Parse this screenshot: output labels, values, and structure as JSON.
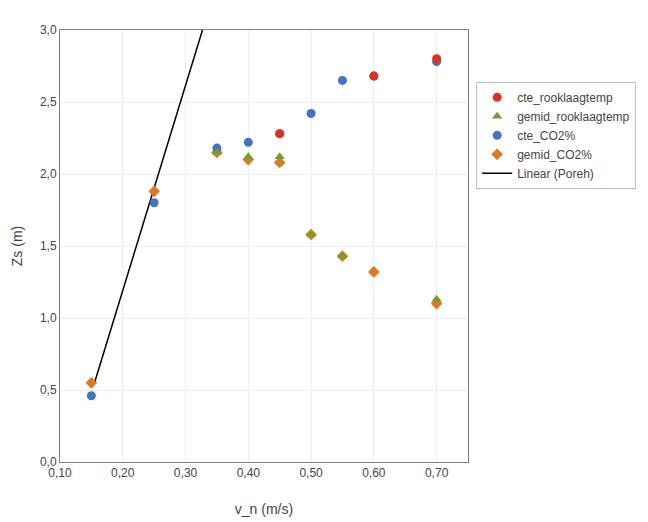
{
  "chart_data": {
    "type": "scatter",
    "xlabel": "v_n (m/s)",
    "ylabel": "Zs (m)",
    "xlim": [
      0.1,
      0.75
    ],
    "ylim": [
      0.0,
      3.0
    ],
    "xticks": [
      {
        "value": 0.1,
        "label": "0,10"
      },
      {
        "value": 0.2,
        "label": "0,20"
      },
      {
        "value": 0.3,
        "label": "0,30"
      },
      {
        "value": 0.4,
        "label": "0,40"
      },
      {
        "value": 0.5,
        "label": "0,50"
      },
      {
        "value": 0.6,
        "label": "0,60"
      },
      {
        "value": 0.7,
        "label": "0,70"
      }
    ],
    "yticks": [
      {
        "value": 0.0,
        "label": "0,0"
      },
      {
        "value": 0.5,
        "label": "0,5"
      },
      {
        "value": 1.0,
        "label": "1,0"
      },
      {
        "value": 1.5,
        "label": "1,5"
      },
      {
        "value": 2.0,
        "label": "2,0"
      },
      {
        "value": 2.5,
        "label": "2,5"
      },
      {
        "value": 3.0,
        "label": "3,0"
      }
    ],
    "grid": true,
    "legend": "right",
    "series": [
      {
        "name": "cte_rooklaagtemp",
        "type": "scatter",
        "color": "#e03020",
        "marker": "circle",
        "x": [
          0.45,
          0.6,
          0.7
        ],
        "values": [
          2.28,
          2.68,
          2.8
        ]
      },
      {
        "name": "gemid_rooklaagtemp",
        "type": "scatter",
        "color": "#70a030",
        "marker": "triangle-up",
        "x": [
          0.35,
          0.4,
          0.45,
          0.5,
          0.55,
          0.7
        ],
        "values": [
          2.15,
          2.12,
          2.12,
          1.58,
          1.43,
          1.13
        ]
      },
      {
        "name": "cte_CO2%",
        "type": "scatter",
        "color": "#4472c4",
        "marker": "circle",
        "x": [
          0.15,
          0.25,
          0.35,
          0.4,
          0.45,
          0.5,
          0.55,
          0.6,
          0.7
        ],
        "values": [
          0.46,
          1.8,
          2.18,
          2.22,
          2.28,
          2.42,
          2.65,
          2.68,
          2.78
        ]
      },
      {
        "name": "gemid_CO2%",
        "type": "scatter",
        "color": "#e07820",
        "marker": "diamond",
        "x": [
          0.15,
          0.25,
          0.35,
          0.4,
          0.45,
          0.5,
          0.55,
          0.6,
          0.7
        ],
        "values": [
          0.55,
          1.88,
          2.15,
          2.1,
          2.08,
          1.58,
          1.43,
          1.32,
          1.1
        ]
      },
      {
        "name": "Linear (Poreh)",
        "type": "line",
        "color": "#000000",
        "line_style": "solid",
        "x": [
          0.155,
          0.327
        ],
        "values": [
          0.55,
          3.0
        ]
      }
    ]
  }
}
